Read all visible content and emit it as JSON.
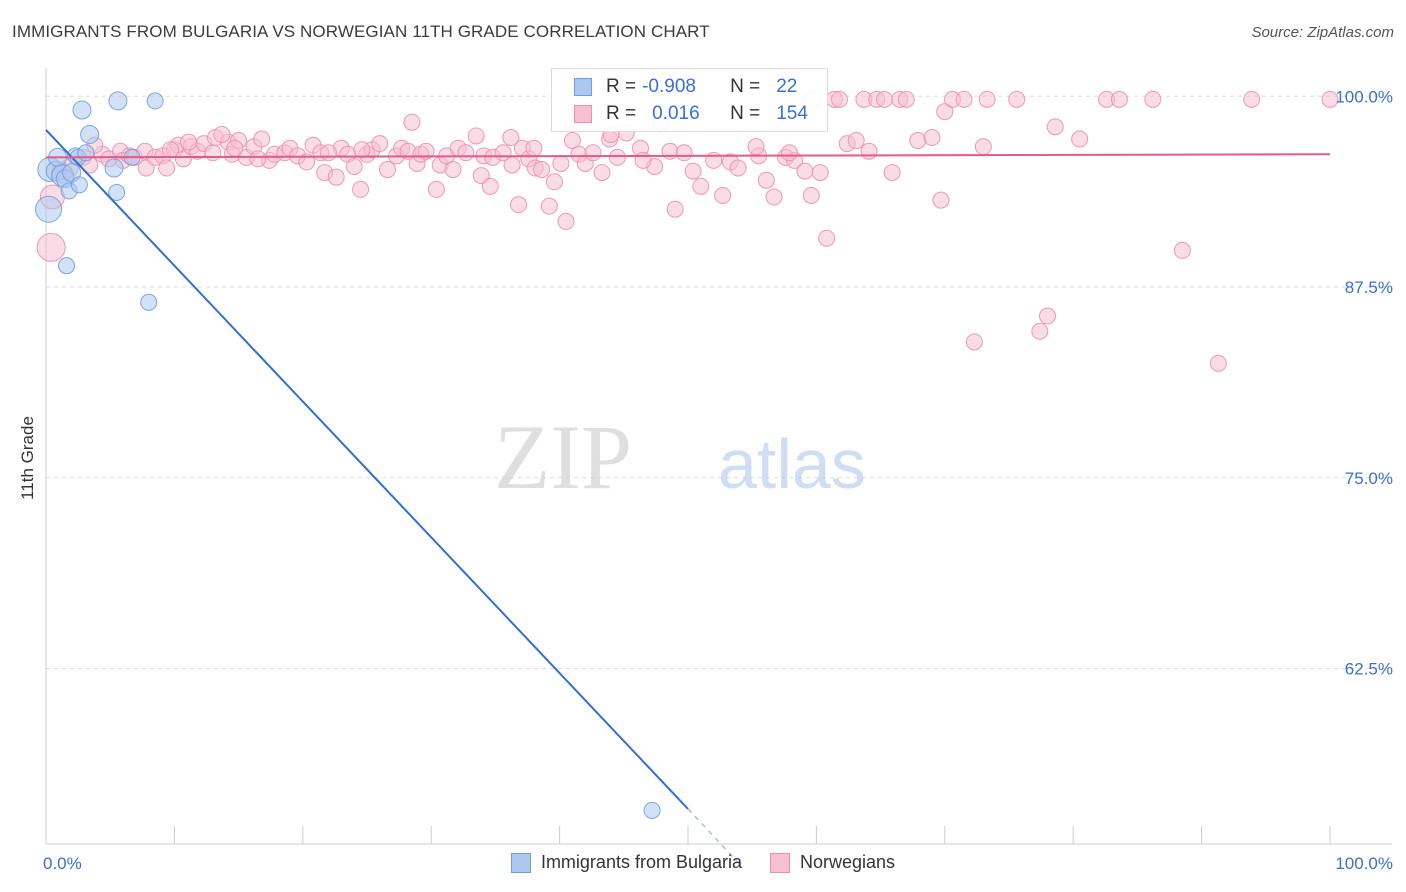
{
  "chart_data": {
    "type": "scatter",
    "title": "IMMIGRANTS FROM BULGARIA VS NORWEGIAN 11TH GRADE CORRELATION CHART",
    "source": "Source: ZipAtlas.com",
    "xlabel": "",
    "ylabel": "11th Grade",
    "xlim": [
      0,
      100
    ],
    "ylim": [
      51.0,
      101.2
    ],
    "x_tick_labels": [
      "0.0%",
      "100.0%"
    ],
    "y_ticks": [
      100.0,
      87.5,
      75.0,
      62.5
    ],
    "y_tick_labels": [
      "100.0%",
      "87.5%",
      "75.0%",
      "62.5%"
    ],
    "grid": true,
    "watermark": {
      "zip": "ZIP",
      "atlas": "atlas"
    },
    "colors": {
      "bulgaria_fill": "#adc8ef",
      "bulgaria_stroke": "#6f9fe0",
      "bulgaria_line": "#2f6fd6",
      "norway_fill": "#f6bfd2",
      "norway_stroke": "#ec8fb0",
      "norway_line": "#e55a88",
      "tick_label": "#3a6fd8",
      "grid": "#dddddd"
    },
    "legend": {
      "r_label": "R =",
      "n_label": "N =",
      "rows": [
        {
          "r": "-0.908",
          "n": "22"
        },
        {
          "r": "0.016",
          "n": "154"
        }
      ]
    },
    "series": [
      {
        "name": "Immigrants from Bulgaria",
        "trend": {
          "x0": 0,
          "y0": 97.8,
          "x1": 50,
          "y1": 53.3,
          "dash_to_x": 54,
          "dash_to_y": 49.7
        },
        "points": [
          [
            0.3,
            95.2,
            12
          ],
          [
            0.8,
            95.1,
            10
          ],
          [
            0.9,
            96.0,
            9
          ],
          [
            1.3,
            94.8,
            11
          ],
          [
            1.5,
            94.6,
            9
          ],
          [
            1.8,
            93.8,
            8
          ],
          [
            2.0,
            95.0,
            9
          ],
          [
            2.3,
            96.1,
            8
          ],
          [
            2.5,
            96.0,
            8
          ],
          [
            2.6,
            94.2,
            8
          ],
          [
            2.8,
            99.1,
            9
          ],
          [
            3.1,
            96.3,
            8
          ],
          [
            3.4,
            97.5,
            9
          ],
          [
            5.3,
            95.3,
            9
          ],
          [
            5.5,
            93.7,
            8
          ],
          [
            5.6,
            99.7,
            9
          ],
          [
            6.7,
            96.0,
            8
          ],
          [
            8.0,
            86.5,
            8
          ],
          [
            8.5,
            99.7,
            8
          ],
          [
            0.2,
            92.6,
            13
          ],
          [
            1.6,
            88.9,
            8
          ],
          [
            47.2,
            53.2,
            8
          ]
        ]
      },
      {
        "name": "Norwegians",
        "trend": {
          "x0": 0,
          "y0": 96.0,
          "x1": 100,
          "y1": 96.2
        },
        "points": [
          [
            0.4,
            90.1,
            14
          ],
          [
            0.5,
            93.4,
            12
          ],
          [
            1.2,
            95.0,
            10
          ],
          [
            1.8,
            95.3,
            9
          ],
          [
            2.9,
            96.0,
            8
          ],
          [
            3.4,
            95.5,
            8
          ],
          [
            4.4,
            96.2,
            8
          ],
          [
            4.9,
            95.9,
            8
          ],
          [
            5.8,
            96.4,
            8
          ],
          [
            6.0,
            95.8,
            8
          ],
          [
            6.5,
            96.1,
            8
          ],
          [
            6.9,
            96.0,
            8
          ],
          [
            7.7,
            96.4,
            8
          ],
          [
            7.8,
            95.3,
            8
          ],
          [
            8.5,
            96.0,
            8
          ],
          [
            9.1,
            96.1,
            8
          ],
          [
            9.4,
            95.3,
            8
          ],
          [
            10.0,
            96.5,
            8
          ],
          [
            10.3,
            96.8,
            8
          ],
          [
            10.7,
            95.9,
            8
          ],
          [
            11.3,
            96.7,
            8
          ],
          [
            11.8,
            96.4,
            8
          ],
          [
            12.3,
            96.9,
            8
          ],
          [
            13.0,
            96.3,
            8
          ],
          [
            13.2,
            97.3,
            8
          ],
          [
            14.2,
            97.0,
            8
          ],
          [
            14.5,
            96.2,
            8
          ],
          [
            15.0,
            97.1,
            8
          ],
          [
            15.6,
            96.0,
            8
          ],
          [
            16.2,
            96.7,
            8
          ],
          [
            16.8,
            97.2,
            8
          ],
          [
            17.4,
            95.8,
            8
          ],
          [
            17.8,
            96.2,
            8
          ],
          [
            18.6,
            96.3,
            8
          ],
          [
            19.0,
            96.6,
            8
          ],
          [
            19.6,
            96.1,
            8
          ],
          [
            20.3,
            95.7,
            8
          ],
          [
            20.8,
            96.8,
            8
          ],
          [
            21.4,
            96.3,
            8
          ],
          [
            21.7,
            95.0,
            8
          ],
          [
            22.6,
            94.7,
            8
          ],
          [
            23.0,
            96.6,
            8
          ],
          [
            23.5,
            96.2,
            8
          ],
          [
            24.0,
            95.4,
            8
          ],
          [
            24.5,
            93.9,
            8
          ],
          [
            25.0,
            96.2,
            8
          ],
          [
            25.4,
            96.5,
            8
          ],
          [
            26.0,
            96.9,
            8
          ],
          [
            26.6,
            95.2,
            8
          ],
          [
            27.3,
            96.1,
            8
          ],
          [
            27.7,
            96.6,
            8
          ],
          [
            28.2,
            96.4,
            8
          ],
          [
            28.9,
            95.6,
            8
          ],
          [
            29.2,
            96.2,
            8
          ],
          [
            29.6,
            96.4,
            8
          ],
          [
            30.4,
            93.9,
            8
          ],
          [
            30.7,
            95.5,
            8
          ],
          [
            31.2,
            96.1,
            8
          ],
          [
            31.7,
            95.2,
            8
          ],
          [
            32.1,
            96.6,
            8
          ],
          [
            32.7,
            96.3,
            8
          ],
          [
            33.5,
            97.4,
            8
          ],
          [
            33.9,
            94.8,
            8
          ],
          [
            34.1,
            96.1,
            8
          ],
          [
            34.8,
            96.0,
            8
          ],
          [
            35.6,
            96.3,
            8
          ],
          [
            36.3,
            95.5,
            8
          ],
          [
            36.8,
            92.9,
            8
          ],
          [
            37.1,
            96.6,
            8
          ],
          [
            37.6,
            95.9,
            8
          ],
          [
            38.1,
            95.3,
            8
          ],
          [
            38.6,
            95.2,
            8
          ],
          [
            39.2,
            92.8,
            8
          ],
          [
            39.6,
            94.4,
            8
          ],
          [
            40.1,
            95.6,
            8
          ],
          [
            40.5,
            91.8,
            8
          ],
          [
            41.0,
            97.1,
            8
          ],
          [
            41.5,
            96.2,
            8
          ],
          [
            42.0,
            95.6,
            8
          ],
          [
            42.6,
            96.3,
            8
          ],
          [
            43.3,
            95.0,
            8
          ],
          [
            43.9,
            97.2,
            8
          ],
          [
            44.5,
            96.0,
            8
          ],
          [
            45.2,
            97.6,
            8
          ],
          [
            46.3,
            96.6,
            8
          ],
          [
            47.4,
            95.4,
            8
          ],
          [
            48.6,
            96.4,
            8
          ],
          [
            49.0,
            92.6,
            8
          ],
          [
            49.7,
            96.3,
            8
          ],
          [
            50.4,
            95.1,
            8
          ],
          [
            51.0,
            94.1,
            8
          ],
          [
            52.0,
            95.8,
            8
          ],
          [
            52.7,
            93.5,
            8
          ],
          [
            53.3,
            95.7,
            8
          ],
          [
            53.9,
            95.3,
            8
          ],
          [
            55.5,
            96.1,
            8
          ],
          [
            56.1,
            94.5,
            8
          ],
          [
            56.7,
            93.4,
            8
          ],
          [
            57.6,
            96.0,
            8
          ],
          [
            58.3,
            95.8,
            8
          ],
          [
            59.1,
            95.1,
            8
          ],
          [
            59.6,
            93.5,
            8
          ],
          [
            60.3,
            95.0,
            8
          ],
          [
            60.8,
            90.7,
            8
          ],
          [
            61.4,
            99.8,
            8
          ],
          [
            61.8,
            99.8,
            8
          ],
          [
            62.4,
            96.9,
            8
          ],
          [
            63.1,
            97.1,
            8
          ],
          [
            63.7,
            99.8,
            8
          ],
          [
            64.1,
            96.4,
            8
          ],
          [
            64.7,
            99.8,
            8
          ],
          [
            65.3,
            99.8,
            8
          ],
          [
            65.9,
            95.0,
            8
          ],
          [
            66.5,
            99.8,
            8
          ],
          [
            67.0,
            99.8,
            8
          ],
          [
            67.9,
            97.1,
            8
          ],
          [
            69.7,
            93.2,
            8
          ],
          [
            70.0,
            99.0,
            8
          ],
          [
            70.6,
            99.8,
            8
          ],
          [
            71.5,
            99.8,
            8
          ],
          [
            72.3,
            83.9,
            8
          ],
          [
            73.0,
            96.7,
            8
          ],
          [
            73.3,
            99.8,
            8
          ],
          [
            75.6,
            99.8,
            8
          ],
          [
            77.4,
            84.6,
            8
          ],
          [
            78.0,
            85.6,
            8
          ],
          [
            78.6,
            98.0,
            8
          ],
          [
            80.5,
            97.2,
            8
          ],
          [
            82.6,
            99.8,
            8
          ],
          [
            83.6,
            99.8,
            8
          ],
          [
            86.2,
            99.8,
            8
          ],
          [
            88.5,
            89.9,
            8
          ],
          [
            91.3,
            82.5,
            8
          ],
          [
            93.9,
            99.8,
            8
          ],
          [
            100.0,
            99.8,
            8
          ],
          [
            44.0,
            97.5,
            8
          ],
          [
            47.9,
            98.2,
            8
          ],
          [
            36.2,
            97.3,
            8
          ],
          [
            28.5,
            98.3,
            8
          ],
          [
            13.7,
            97.5,
            8
          ],
          [
            55.3,
            96.7,
            8
          ],
          [
            24.6,
            96.5,
            8
          ],
          [
            57.9,
            96.3,
            8
          ],
          [
            11.1,
            97.0,
            8
          ],
          [
            34.6,
            94.1,
            8
          ],
          [
            59.6,
            99.8,
            8
          ],
          [
            69.0,
            97.3,
            8
          ],
          [
            46.5,
            95.8,
            8
          ],
          [
            9.7,
            96.5,
            8
          ],
          [
            3.8,
            96.8,
            8
          ],
          [
            14.7,
            96.6,
            8
          ],
          [
            16.5,
            95.9,
            8
          ],
          [
            22.0,
            96.3,
            8
          ],
          [
            38.0,
            96.6,
            8
          ]
        ]
      }
    ]
  }
}
